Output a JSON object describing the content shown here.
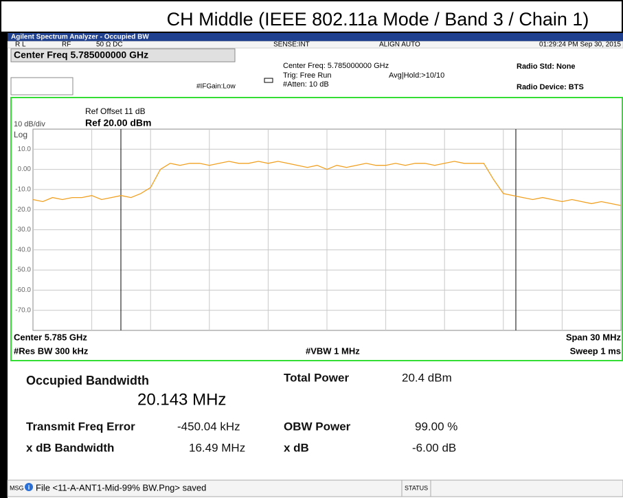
{
  "title": "CH Middle (IEEE 802.11a Mode / Band 3 / Chain 1)",
  "window_title": "Agilent Spectrum Analyzer - Occupied BW",
  "status_row": {
    "rl": "R L",
    "rf": "RF",
    "input": "50 Ω  DC",
    "sense": "SENSE:INT",
    "align": "ALIGN AUTO",
    "timestamp": "01:29:24 PM Sep 30, 2015"
  },
  "settings": {
    "center_freq_box": "Center Freq 5.785000000 GHz",
    "if_gain": "#IFGain:Low",
    "center_freq": "Center Freq: 5.785000000 GHz",
    "trig": "Trig: Free Run",
    "atten": "#Atten: 10 dB",
    "avg_hold": "Avg|Hold:>10/10",
    "radio_std": "Radio Std: None",
    "radio_device": "Radio Device: BTS"
  },
  "graph_labels": {
    "ref_offset": "Ref Offset 11 dB",
    "scale": "10 dB/div",
    "ref_level": "Ref 20.00 dBm",
    "log": "Log",
    "center": "Center  5.785 GHz",
    "span": "Span 30 MHz",
    "res_bw": "#Res BW  300 kHz",
    "vbw": "#VBW  1 MHz",
    "sweep": "Sweep  1 ms"
  },
  "chart_data": {
    "type": "line",
    "color": "#f0a020",
    "grid": true,
    "ylim": [
      -80,
      20
    ],
    "yticks": [
      {
        "value": 10,
        "label": "10.0"
      },
      {
        "value": 0,
        "label": "0.00"
      },
      {
        "value": -10,
        "label": "-10.0"
      },
      {
        "value": -20,
        "label": "-20.0"
      },
      {
        "value": -30,
        "label": "-30.0"
      },
      {
        "value": -40,
        "label": "-40.0"
      },
      {
        "value": -50,
        "label": "-50.0"
      },
      {
        "value": -60,
        "label": "-60.0"
      },
      {
        "value": -70,
        "label": "-70.0"
      }
    ],
    "values": [
      -15,
      -16,
      -14,
      -15,
      -14,
      -14,
      -13,
      -15,
      -14,
      -13,
      -14,
      -12,
      -9,
      0,
      3,
      2,
      3,
      3,
      2,
      3,
      4,
      3,
      3,
      4,
      3,
      4,
      3,
      2,
      1,
      2,
      0,
      2,
      1,
      2,
      3,
      2,
      2,
      3,
      2,
      3,
      3,
      2,
      3,
      4,
      3,
      3,
      3,
      -5,
      -12,
      -13,
      -14,
      -15,
      -14,
      -15,
      -16,
      -15,
      -16,
      -17,
      -16,
      -17,
      -18
    ]
  },
  "measurements": {
    "obw_label": "Occupied Bandwidth",
    "obw_value": "20.143 MHz",
    "total_power_label": "Total Power",
    "total_power_value": "20.4 dBm",
    "freq_error_label": "Transmit Freq Error",
    "freq_error_value": "-450.04 kHz",
    "obw_power_label": "OBW Power",
    "obw_power_value": "99.00 %",
    "xdb_bw_label": "x dB Bandwidth",
    "xdb_bw_value": "16.49 MHz",
    "xdb_label": "x dB",
    "xdb_value": "-6.00 dB"
  },
  "status_bar": {
    "msg": "MSG",
    "message": "File <11-A-ANT1-Mid-99% BW.Png> saved",
    "status": "STATUS"
  }
}
